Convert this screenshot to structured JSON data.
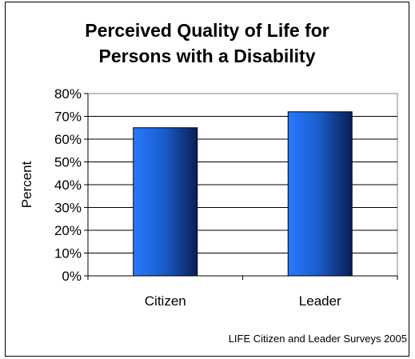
{
  "chart_data": {
    "type": "bar",
    "title_lines": [
      "Perceived Quality of Life for",
      "Persons with a Disability"
    ],
    "categories": [
      "Citizen",
      "Leader"
    ],
    "values": [
      65,
      72
    ],
    "ylabel": "Percent",
    "xlabel": "",
    "ylim": [
      0,
      80
    ],
    "yticks": [
      "0%",
      "10%",
      "20%",
      "30%",
      "40%",
      "50%",
      "60%",
      "70%",
      "80%"
    ],
    "grid": true,
    "legend": "none",
    "bar_color": "#1a5fd0",
    "source": "LIFE Citizen and Leader Surveys 2005"
  }
}
